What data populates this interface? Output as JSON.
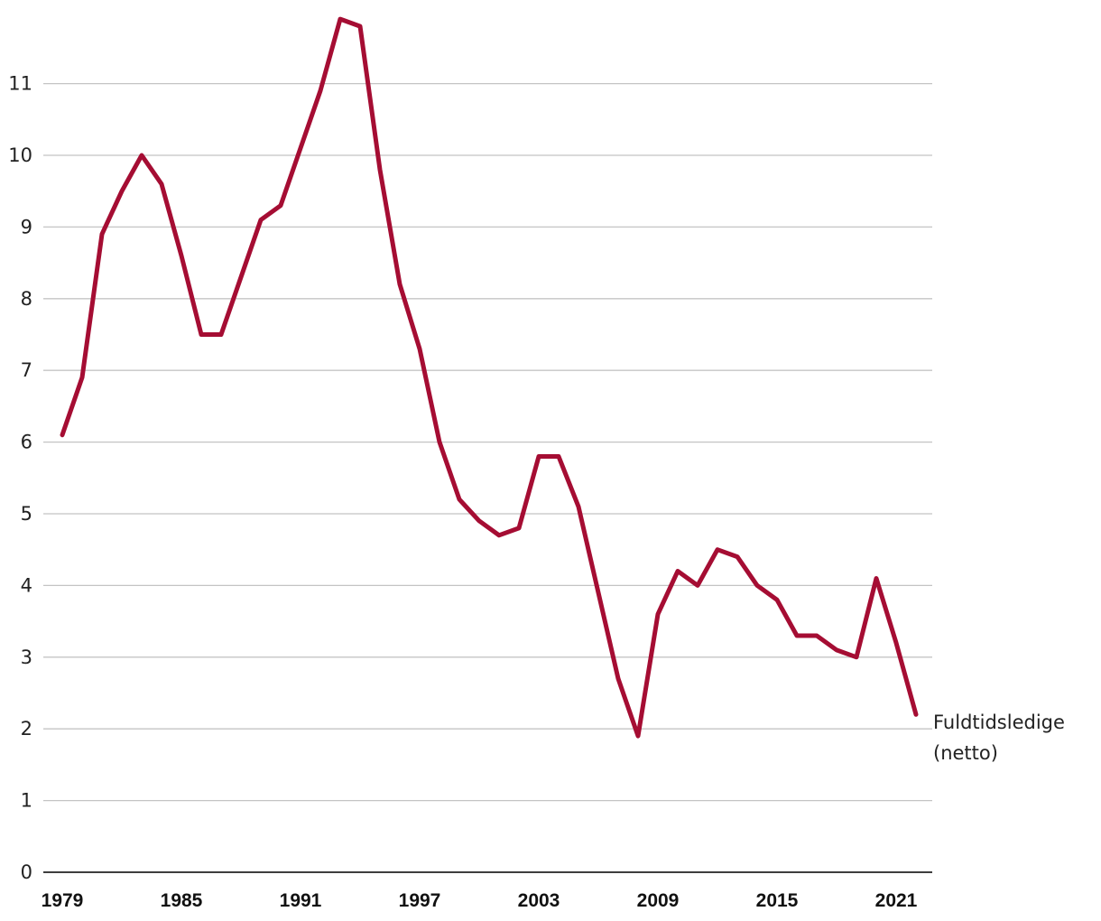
{
  "chart_data": {
    "type": "line",
    "title": "",
    "xlabel": "",
    "ylabel": "",
    "xlim": [
      1979,
      2022
    ],
    "ylim": [
      0,
      12
    ],
    "yticks": [
      "0",
      "1",
      "2",
      "3",
      "4",
      "5",
      "6",
      "7",
      "8",
      "9",
      "10",
      "11"
    ],
    "xticks": [
      "1979",
      "1985",
      "1991",
      "1997",
      "2003",
      "2009",
      "2015",
      "2021"
    ],
    "grid": true,
    "series": [
      {
        "name": "Fuldtidsledige (netto)",
        "label_lines": [
          "Fuldtidsledige",
          "(netto)"
        ],
        "color": "#a50d33",
        "x": [
          1979,
          1980,
          1981,
          1982,
          1983,
          1984,
          1985,
          1986,
          1987,
          1988,
          1989,
          1990,
          1991,
          1992,
          1993,
          1994,
          1995,
          1996,
          1997,
          1998,
          1999,
          2000,
          2001,
          2002,
          2003,
          2004,
          2005,
          2006,
          2007,
          2008,
          2009,
          2010,
          2011,
          2012,
          2013,
          2014,
          2015,
          2016,
          2017,
          2018,
          2019,
          2020,
          2021,
          2022
        ],
        "y": [
          6.1,
          6.9,
          8.9,
          9.5,
          10.0,
          9.6,
          8.6,
          7.5,
          7.5,
          8.3,
          9.1,
          9.3,
          10.1,
          10.9,
          11.9,
          11.8,
          9.8,
          8.2,
          7.3,
          6.0,
          5.2,
          4.9,
          4.7,
          4.8,
          5.8,
          5.8,
          5.1,
          3.9,
          2.7,
          1.9,
          3.6,
          4.2,
          4.0,
          4.5,
          4.4,
          4.0,
          3.8,
          3.3,
          3.3,
          3.1,
          3.0,
          4.1,
          3.2,
          2.2
        ]
      }
    ]
  }
}
